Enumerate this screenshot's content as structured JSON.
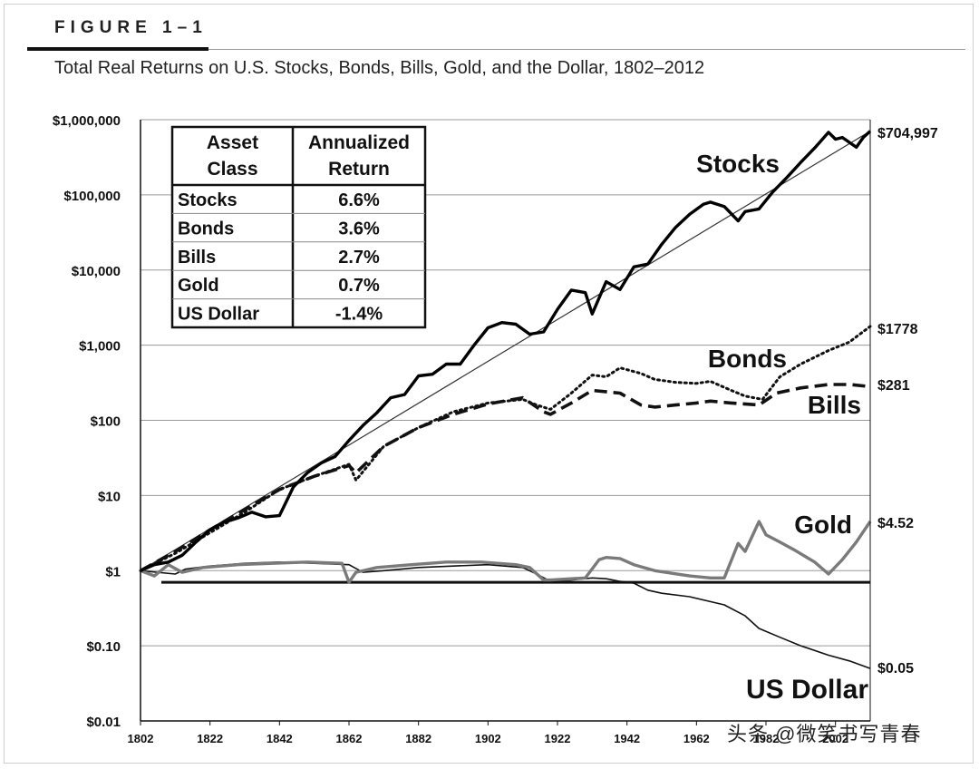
{
  "figure": {
    "label": "FIGURE 1–1",
    "title": "Total Real Returns on U.S. Stocks, Bonds, Bills, Gold, and the Dollar, 1802–2012"
  },
  "watermark": "头条 @微笑书写青春",
  "chart_data": {
    "type": "line",
    "scale": "log",
    "ylim": [
      0.01,
      1000000
    ],
    "xlim": [
      1802,
      2012
    ],
    "y_ticks": [
      {
        "value": 1000000,
        "label": "$1,000,000"
      },
      {
        "value": 100000,
        "label": "$100,000"
      },
      {
        "value": 10000,
        "label": "$10,000"
      },
      {
        "value": 1000,
        "label": "$1,000"
      },
      {
        "value": 100,
        "label": "$100"
      },
      {
        "value": 10,
        "label": "$10"
      },
      {
        "value": 1,
        "label": "$1"
      },
      {
        "value": 0.1,
        "label": "$0.10"
      },
      {
        "value": 0.01,
        "label": "$0.01"
      }
    ],
    "x_ticks": [
      1802,
      1822,
      1842,
      1862,
      1882,
      1902,
      1922,
      1942,
      1962,
      1982,
      2002
    ],
    "x_tick_labels": [
      "1802",
      "1822",
      "1842",
      "1862",
      "1882",
      "1902",
      "1922",
      "1942",
      "1962",
      "1982",
      "2002"
    ],
    "grid": true,
    "reference_value": 0.7,
    "trend_line": {
      "from": [
        1802,
        1
      ],
      "to": [
        2012,
        704997
      ]
    },
    "series": [
      {
        "name": "Stocks",
        "label": "Stocks",
        "end_label": "$704,997",
        "style": "solid-thick",
        "x": [
          1802,
          1806,
          1810,
          1814,
          1818,
          1822,
          1826,
          1830,
          1834,
          1838,
          1842,
          1846,
          1850,
          1854,
          1858,
          1862,
          1866,
          1870,
          1874,
          1878,
          1882,
          1886,
          1890,
          1894,
          1898,
          1902,
          1906,
          1910,
          1914,
          1918,
          1922,
          1926,
          1930,
          1932,
          1936,
          1940,
          1944,
          1948,
          1952,
          1956,
          1960,
          1964,
          1966,
          1970,
          1974,
          1976,
          1980,
          1984,
          1988,
          1992,
          1996,
          2000,
          2002,
          2004,
          2008,
          2010,
          2012
        ],
        "values": [
          1,
          1.2,
          1.3,
          1.6,
          2.4,
          3.5,
          4.4,
          5,
          6,
          5.2,
          5.4,
          13,
          20,
          27,
          33,
          54,
          85,
          126,
          200,
          220,
          390,
          410,
          560,
          560,
          1000,
          1700,
          2000,
          1900,
          1400,
          1500,
          3000,
          5400,
          5000,
          2600,
          7000,
          5500,
          11000,
          12000,
          22000,
          37000,
          55000,
          75000,
          80000,
          70000,
          45000,
          60000,
          65000,
          110000,
          170000,
          270000,
          420000,
          680000,
          550000,
          580000,
          430000,
          580000,
          704997
        ]
      },
      {
        "name": "Bonds",
        "label": "Bonds",
        "end_label": "$1778",
        "style": "dotted",
        "x": [
          1802,
          1812,
          1822,
          1832,
          1842,
          1852,
          1862,
          1864,
          1872,
          1882,
          1892,
          1902,
          1912,
          1916,
          1920,
          1926,
          1932,
          1936,
          1940,
          1946,
          1950,
          1956,
          1962,
          1966,
          1972,
          1976,
          1981,
          1986,
          1992,
          2000,
          2006,
          2012
        ],
        "values": [
          1,
          1.7,
          3.2,
          6,
          12,
          18,
          26,
          16,
          45,
          80,
          130,
          170,
          190,
          160,
          140,
          230,
          400,
          380,
          500,
          420,
          350,
          320,
          310,
          330,
          250,
          210,
          190,
          380,
          560,
          850,
          1100,
          1778
        ]
      },
      {
        "name": "Bills",
        "label": "Bills",
        "end_label": "$281",
        "style": "dashed",
        "x": [
          1802,
          1812,
          1822,
          1832,
          1842,
          1852,
          1862,
          1864,
          1872,
          1882,
          1892,
          1902,
          1912,
          1918,
          1920,
          1926,
          1932,
          1940,
          1946,
          1950,
          1956,
          1962,
          1966,
          1972,
          1980,
          1985,
          1992,
          2000,
          2006,
          2012
        ],
        "values": [
          1,
          1.8,
          3.5,
          6.5,
          12,
          18,
          25,
          20,
          45,
          80,
          120,
          165,
          200,
          130,
          120,
          170,
          250,
          230,
          160,
          150,
          160,
          170,
          180,
          170,
          160,
          230,
          270,
          300,
          300,
          281
        ]
      },
      {
        "name": "Gold",
        "label": "Gold",
        "end_label": "$4.52",
        "style": "solid-gray",
        "x": [
          1802,
          1806,
          1810,
          1814,
          1820,
          1830,
          1840,
          1850,
          1860,
          1862,
          1864,
          1870,
          1880,
          1890,
          1900,
          1910,
          1914,
          1918,
          1920,
          1930,
          1934,
          1936,
          1940,
          1944,
          1950,
          1960,
          1966,
          1970,
          1974,
          1976,
          1980,
          1982,
          1986,
          1990,
          1996,
          2000,
          2004,
          2008,
          2012
        ],
        "values": [
          1,
          0.85,
          1.2,
          0.95,
          1.1,
          1.2,
          1.25,
          1.3,
          1.25,
          0.7,
          0.95,
          1.1,
          1.2,
          1.3,
          1.3,
          1.2,
          1.1,
          0.75,
          0.75,
          0.8,
          1.4,
          1.5,
          1.45,
          1.2,
          1.0,
          0.85,
          0.8,
          0.8,
          2.3,
          1.8,
          4.5,
          3.0,
          2.4,
          1.9,
          1.3,
          0.9,
          1.4,
          2.4,
          4.52
        ]
      },
      {
        "name": "US Dollar",
        "label": "US Dollar",
        "end_label": "$0.05",
        "style": "solid-thin",
        "x": [
          1802,
          1812,
          1815,
          1822,
          1832,
          1842,
          1852,
          1862,
          1866,
          1872,
          1882,
          1892,
          1902,
          1912,
          1916,
          1920,
          1926,
          1932,
          1936,
          1940,
          1944,
          1948,
          1952,
          1960,
          1970,
          1976,
          1980,
          1986,
          1992,
          2000,
          2006,
          2012
        ],
        "values": [
          1,
          0.9,
          1.05,
          1.15,
          1.25,
          1.3,
          1.25,
          1.2,
          0.95,
          1.0,
          1.1,
          1.15,
          1.2,
          1.1,
          0.9,
          0.72,
          0.75,
          0.8,
          0.78,
          0.72,
          0.68,
          0.55,
          0.5,
          0.45,
          0.35,
          0.25,
          0.17,
          0.13,
          0.1,
          0.075,
          0.063,
          0.05
        ]
      }
    ],
    "table": {
      "headers": [
        "Asset Class",
        "Annualized Return"
      ],
      "rows": [
        [
          "Stocks",
          "6.6%"
        ],
        [
          "Bonds",
          "3.6%"
        ],
        [
          "Bills",
          "2.7%"
        ],
        [
          "Gold",
          "0.7%"
        ],
        [
          "US Dollar",
          "-1.4%"
        ]
      ]
    }
  }
}
